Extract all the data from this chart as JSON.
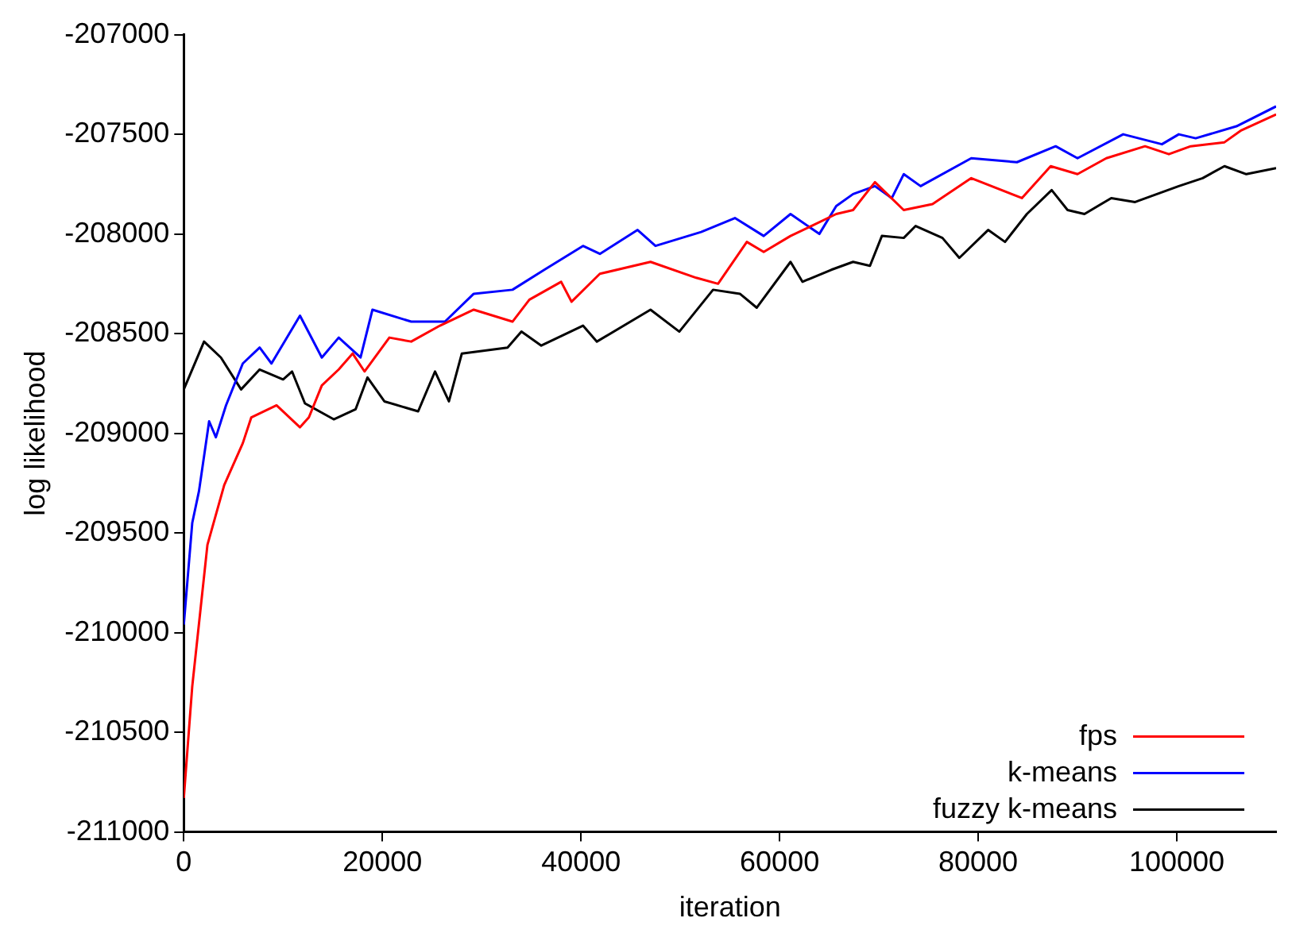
{
  "chart_data": {
    "type": "line",
    "xlabel": "iteration",
    "ylabel": "log likelihood",
    "xlim": [
      0,
      110000
    ],
    "ylim": [
      -211000,
      -207000
    ],
    "xticks": [
      0,
      20000,
      40000,
      60000,
      80000,
      100000
    ],
    "yticks": [
      -211000,
      -210500,
      -210000,
      -209500,
      -209000,
      -208500,
      -208000,
      -207500,
      -207000
    ],
    "grid": false,
    "legend": "bottom right",
    "marker": "none",
    "line_style": "solid",
    "series": [
      {
        "name": "fps",
        "color": "#ff0000",
        "x": [
          0,
          850,
          2380,
          4070,
          5940,
          6800,
          9340,
          11700,
          12600,
          13900,
          15600,
          17000,
          18200,
          20700,
          22900,
          25800,
          29200,
          33100,
          34800,
          38000,
          39050,
          41900,
          47000,
          51600,
          53800,
          56700,
          58400,
          61100,
          63200,
          65700,
          67400,
          69600,
          72500,
          75400,
          79300,
          84400,
          87300,
          90000,
          92900,
          96800,
          99200,
          101400,
          104800,
          106500,
          110000
        ],
        "values": [
          -210830,
          -210270,
          -209560,
          -209260,
          -209050,
          -208920,
          -208860,
          -208970,
          -208920,
          -208760,
          -208680,
          -208600,
          -208690,
          -208520,
          -208540,
          -208460,
          -208380,
          -208440,
          -208330,
          -208240,
          -208340,
          -208200,
          -208140,
          -208220,
          -208250,
          -208040,
          -208090,
          -208010,
          -207960,
          -207900,
          -207880,
          -207740,
          -207880,
          -207850,
          -207720,
          -207820,
          -207660,
          -207700,
          -207620,
          -207560,
          -207600,
          -207560,
          -207540,
          -207480,
          -207400
        ]
      },
      {
        "name": "k-means",
        "color": "#0000ff",
        "x": [
          0,
          850,
          1530,
          2550,
          3230,
          4250,
          5940,
          7640,
          8830,
          11700,
          13900,
          15600,
          17800,
          19000,
          22900,
          26300,
          29200,
          33100,
          36300,
          40200,
          41900,
          45700,
          47500,
          52100,
          55500,
          58400,
          61100,
          64000,
          65700,
          67400,
          69600,
          71300,
          72500,
          74200,
          79300,
          83900,
          87800,
          90000,
          94600,
          98500,
          100200,
          101900,
          106000,
          110000
        ],
        "values": [
          -209960,
          -209450,
          -209290,
          -208940,
          -209020,
          -208860,
          -208650,
          -208570,
          -208650,
          -208410,
          -208620,
          -208520,
          -208620,
          -208380,
          -208440,
          -208440,
          -208300,
          -208280,
          -208180,
          -208060,
          -208100,
          -207980,
          -208060,
          -207990,
          -207920,
          -208010,
          -207900,
          -208000,
          -207860,
          -207800,
          -207760,
          -207820,
          -207700,
          -207760,
          -207620,
          -207640,
          -207560,
          -207620,
          -207500,
          -207550,
          -207500,
          -207520,
          -207460,
          -207360
        ]
      },
      {
        "name": "fuzzy k-means",
        "color": "#000000",
        "x": [
          0,
          2040,
          3740,
          5770,
          7640,
          10000,
          10900,
          12200,
          15100,
          17300,
          18500,
          20200,
          23600,
          25300,
          26700,
          28000,
          32600,
          34000,
          36000,
          40200,
          41600,
          47000,
          49900,
          53300,
          56000,
          57700,
          61100,
          62300,
          65200,
          67400,
          69100,
          70300,
          72500,
          73700,
          76400,
          78100,
          81000,
          82700,
          84900,
          87400,
          89000,
          90700,
          93400,
          95800,
          100200,
          102600,
          104800,
          107000,
          110000
        ],
        "values": [
          -208780,
          -208540,
          -208620,
          -208780,
          -208680,
          -208730,
          -208690,
          -208850,
          -208930,
          -208880,
          -208720,
          -208840,
          -208890,
          -208690,
          -208840,
          -208600,
          -208570,
          -208490,
          -208560,
          -208460,
          -208540,
          -208380,
          -208490,
          -208280,
          -208300,
          -208370,
          -208140,
          -208240,
          -208180,
          -208140,
          -208160,
          -208010,
          -208020,
          -207960,
          -208020,
          -208120,
          -207980,
          -208040,
          -207900,
          -207780,
          -207880,
          -207900,
          -207820,
          -207840,
          -207760,
          -207720,
          -207660,
          -207700,
          -207670
        ]
      }
    ]
  }
}
